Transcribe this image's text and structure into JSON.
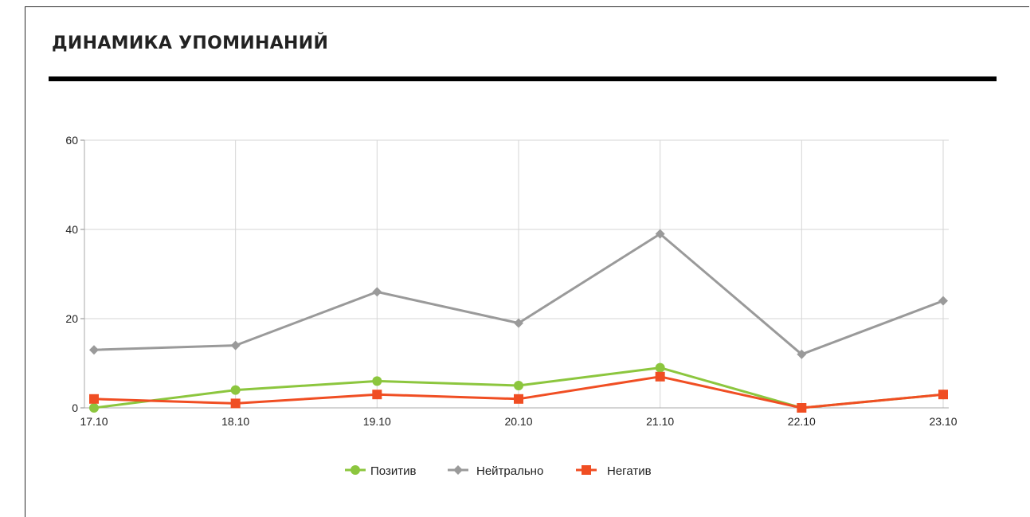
{
  "widget": {
    "title": "ДИНАМИКА УПОМИНАНИЙ"
  },
  "chart_data": {
    "type": "line",
    "title": "ДИНАМИКА УПОМИНАНИЙ",
    "xlabel": "",
    "ylabel": "",
    "categories": [
      "17.10",
      "18.10",
      "19.10",
      "20.10",
      "21.10",
      "22.10",
      "23.10"
    ],
    "ylim": [
      0,
      60
    ],
    "yticks": [
      0,
      20,
      40,
      60
    ],
    "grid": true,
    "legend_position": "bottom",
    "series": [
      {
        "name": "Позитив",
        "color": "#8cc63e",
        "marker": "circle",
        "values": [
          0,
          4,
          6,
          5,
          9,
          0,
          3
        ]
      },
      {
        "name": "Нейтрально",
        "color": "#9a9a9a",
        "marker": "diamond",
        "values": [
          13,
          14,
          26,
          19,
          39,
          12,
          24
        ]
      },
      {
        "name": "Негатив",
        "color": "#f04e23",
        "marker": "square",
        "values": [
          2,
          1,
          3,
          2,
          7,
          0,
          3
        ]
      }
    ]
  }
}
